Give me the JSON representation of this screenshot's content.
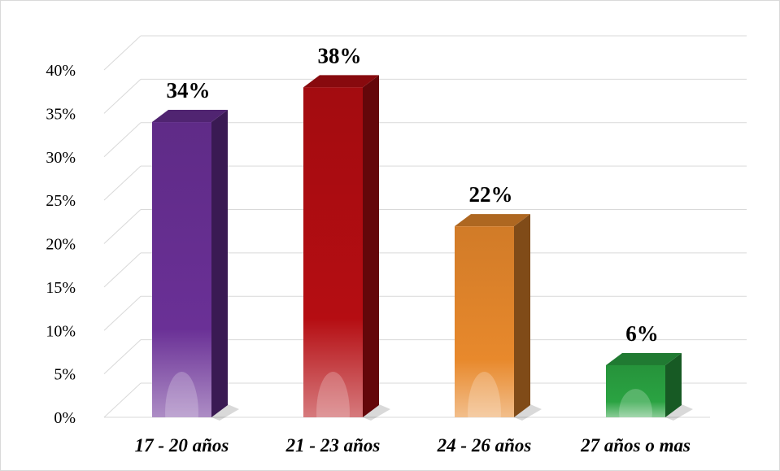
{
  "chart_data": {
    "type": "bar",
    "title": "",
    "xlabel": "",
    "ylabel": "",
    "categories": [
      "17 - 20 años",
      "21 - 23 años",
      "24 - 26 años",
      "27 años o mas"
    ],
    "values": [
      34,
      38,
      22,
      6
    ],
    "data_labels": [
      "34%",
      "38%",
      "22%",
      "6%"
    ],
    "ylim": [
      0,
      40
    ],
    "y_ticks": [
      0,
      5,
      10,
      15,
      20,
      25,
      30,
      35,
      40
    ],
    "y_tick_labels": [
      "0%",
      "5%",
      "10%",
      "15%",
      "20%",
      "25%",
      "30%",
      "35%",
      "40%"
    ],
    "grid": true,
    "legend": "none",
    "style": "3d-column",
    "bar_colors": [
      "#6a3096",
      "#b50d12",
      "#e8892c",
      "#2aa342"
    ],
    "grid_color": "#d9d9d9"
  }
}
